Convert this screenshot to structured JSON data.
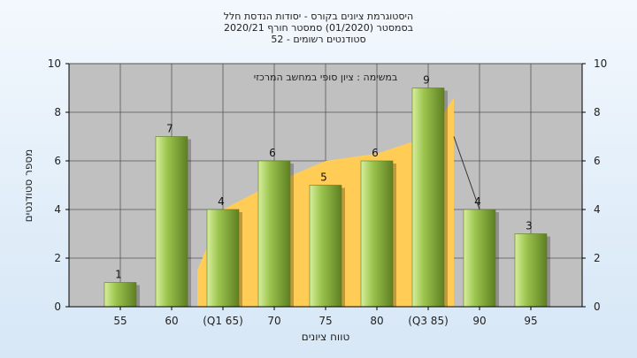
{
  "chart_data": {
    "type": "bar",
    "title_lines": [
      "היסטוגרמת ציונים בקורס - יסודות הנדסת חלל",
      "בסמסטר  (01/2020)  סמסטר חורף  2020/21",
      "סטודנטים רשומים - 52"
    ],
    "annotation": "במשימה : ציון סופי במחשב המרכזי",
    "categories": [
      "55",
      "60",
      "(Q1 65)",
      "70",
      "75",
      "80",
      "(Q3 85)",
      "90",
      "95"
    ],
    "values": [
      1,
      7,
      4,
      6,
      5,
      6,
      9,
      4,
      3
    ],
    "data_labels": [
      "1",
      "7",
      "4",
      "6",
      "5",
      "6",
      "9",
      "4",
      "3"
    ],
    "area_series": {
      "x_index": [
        1.5,
        2,
        3,
        4,
        5,
        6,
        6.5
      ],
      "values": [
        1.5,
        4,
        5.1,
        6,
        6.3,
        7,
        8.6
      ]
    },
    "line_series": {
      "x_index": [
        6.5,
        7
      ],
      "values": [
        7,
        4
      ]
    },
    "xlabel": "טווח ציונים",
    "ylabel": "מספר סטודנטים",
    "ylim": [
      0,
      10
    ],
    "yticks": [
      "0",
      "2",
      "4",
      "6",
      "8",
      "10"
    ],
    "grid": true,
    "colors": {
      "plot_bg": "#c0c0c0",
      "bar_light": "#d7ef9e",
      "bar_mid": "#9dc650",
      "bar_dark": "#5e7f22",
      "area": "#ffcc55",
      "grid": "#555555"
    }
  }
}
